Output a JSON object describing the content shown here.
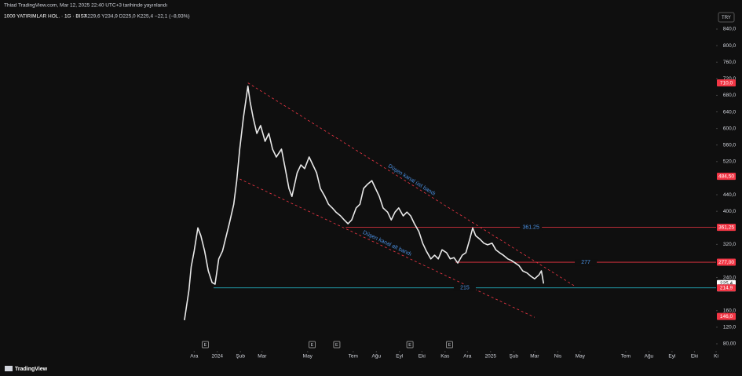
{
  "publisher_note": "Thiad TradingView.com, Mar 12, 2025 22:40 UTC+3 tarihinde yayınlandı",
  "footer_logo": "TradingView",
  "chart_data": {
    "type": "line",
    "title": "1000 YATIRIMLAR HOL. · 1G · BIST",
    "ohlc_text": "A229,6 Y234,9 D225,0 K225,4 −22,1 (−8,93%)",
    "currency": "TRY",
    "x": [
      -13,
      -7,
      -4,
      0,
      5,
      9,
      14,
      19,
      24,
      28,
      33,
      38,
      43,
      47,
      53,
      57,
      61,
      66,
      72,
      75,
      79,
      84,
      89,
      95,
      100,
      105,
      110,
      117,
      122,
      127,
      131,
      138,
      143,
      148,
      154,
      159,
      164,
      169,
      175,
      180,
      185,
      190,
      196,
      201,
      206,
      211,
      217,
      222,
      227,
      232,
      238,
      243,
      248,
      253,
      259,
      264,
      269,
      274,
      280,
      285,
      290,
      295,
      301,
      306,
      311,
      317,
      322,
      327,
      332,
      338,
      343,
      348,
      353,
      359,
      364,
      369,
      373,
      377,
      383,
      388,
      393,
      399,
      404,
      409,
      414,
      420,
      425,
      430,
      435,
      440,
      446,
      451,
      456,
      462,
      465,
      468
    ],
    "series": [
      {
        "color": "#e8e8e8",
        "values": [
          137,
          209,
          266,
          304,
          360,
          341,
          304,
          256,
          228,
          224,
          285,
          304,
          341,
          370,
          417,
          474,
          550,
          626,
          702,
          664,
          626,
          588,
          607,
          569,
          588,
          550,
          531,
          550,
          503,
          455,
          436,
          493,
          512,
          503,
          531,
          512,
          493,
          455,
          436,
          417,
          408,
          398,
          389,
          379,
          370,
          379,
          408,
          417,
          455,
          465,
          474,
          455,
          436,
          408,
          398,
          379,
          398,
          408,
          389,
          398,
          389,
          370,
          351,
          323,
          304,
          285,
          294,
          285,
          307,
          300,
          285,
          288,
          275,
          294,
          300,
          332,
          360,
          341,
          332,
          323,
          319,
          323,
          307,
          300,
          294,
          285,
          281,
          275,
          269,
          256,
          251,
          243,
          237,
          247,
          256,
          225.4
        ]
      }
    ],
    "xlim": [
      -260,
      699
    ],
    "ylim": [
      66.7,
      853.3
    ],
    "xticks": [
      {
        "value": 0,
        "label": "Ara"
      },
      {
        "value": 31,
        "label": "2024"
      },
      {
        "value": 62,
        "label": "Şub"
      },
      {
        "value": 91,
        "label": "Mar"
      },
      {
        "value": 152,
        "label": "May"
      },
      {
        "value": 213,
        "label": "Tem"
      },
      {
        "value": 244,
        "label": "Ağu"
      },
      {
        "value": 275,
        "label": "Eyl"
      },
      {
        "value": 305,
        "label": "Eki"
      },
      {
        "value": 336,
        "label": "Kas"
      },
      {
        "value": 366,
        "label": "Ara"
      },
      {
        "value": 397,
        "label": "2025"
      },
      {
        "value": 428,
        "label": "Şub"
      },
      {
        "value": 456,
        "label": "Mar"
      },
      {
        "value": 487,
        "label": "Nis"
      },
      {
        "value": 517,
        "label": "May"
      },
      {
        "value": 578,
        "label": "Tem"
      },
      {
        "value": 609,
        "label": "Ağu"
      },
      {
        "value": 640,
        "label": "Eyl"
      },
      {
        "value": 670,
        "label": "Eki"
      },
      {
        "value": 699,
        "label": "Ki"
      }
    ],
    "yticks": [
      {
        "value": 840,
        "label": "840,0"
      },
      {
        "value": 800,
        "label": "800,0"
      },
      {
        "value": 760,
        "label": "760,0"
      },
      {
        "value": 720,
        "label": "720,0"
      },
      {
        "value": 680,
        "label": "680,0"
      },
      {
        "value": 640,
        "label": "640,0"
      },
      {
        "value": 600,
        "label": "600,0"
      },
      {
        "value": 560,
        "label": "560,0"
      },
      {
        "value": 520,
        "label": "520,0"
      },
      {
        "value": 440,
        "label": "440,0"
      },
      {
        "value": 400,
        "label": "400,0"
      },
      {
        "value": 320,
        "label": "320,0"
      },
      {
        "value": 240,
        "label": "240,0"
      },
      {
        "value": 160,
        "label": "160,0"
      },
      {
        "value": 120,
        "label": "120,0"
      },
      {
        "value": 80,
        "label": "80,00"
      }
    ],
    "price_lines": [
      {
        "value": 361.25,
        "label": "361.25",
        "color": "#f23645",
        "start": 203
      },
      {
        "value": 277,
        "label": "277",
        "color": "#f23645",
        "start": 350
      },
      {
        "value": 215,
        "label": "215",
        "color": "#26c6da",
        "start": 26
      }
    ],
    "channel_lines": [
      {
        "label": "Düşen kanal üst bandı",
        "x": [
          72,
          511
        ],
        "y": [
          710,
          218
        ],
        "color": "#f23645"
      },
      {
        "label": "Düşen kanal alt bandı",
        "x": [
          61,
          456
        ],
        "y": [
          478,
          144
        ],
        "color": "#f23645"
      }
    ],
    "price_badges": [
      {
        "value": 710,
        "label": "710,0",
        "color": "#f23645"
      },
      {
        "value": 484.5,
        "label": "484,50",
        "color": "#f23645"
      },
      {
        "value": 361.25,
        "label": "361,25",
        "color": "#f23645"
      },
      {
        "value": 277,
        "label": "277,00",
        "color": "#f23645"
      },
      {
        "value": 225.4,
        "label": "225,4",
        "color": "#ffffff"
      },
      {
        "value": 215,
        "label": "215,0",
        "color": "#26c6da"
      },
      {
        "value": 214.9,
        "label": "214,9",
        "color": "#f23645"
      },
      {
        "value": 146,
        "label": "146,0",
        "color": "#f23645"
      }
    ],
    "event_label": "E",
    "event_x": [
      15,
      158,
      191,
      289,
      342
    ]
  }
}
